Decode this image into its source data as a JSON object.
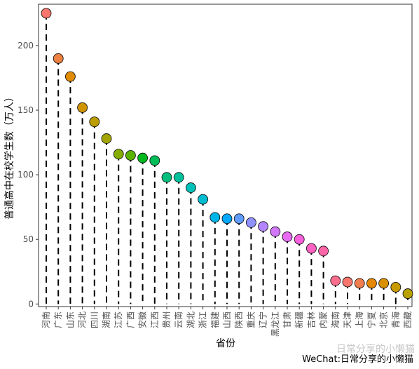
{
  "chart_data": {
    "type": "lollipop",
    "title": "",
    "xlabel": "省份",
    "ylabel": "普通高中在校学生数（万人）",
    "ylim": [
      -2,
      232
    ],
    "yticks": [
      0,
      50,
      100,
      150,
      200
    ],
    "grid": false,
    "legend": "none",
    "categories": [
      "河南",
      "广东",
      "山东",
      "河北",
      "四川",
      "湖南",
      "江苏",
      "广西",
      "安徽",
      "江西",
      "贵州",
      "云南",
      "湖北",
      "浙江",
      "福建",
      "山西",
      "陕西",
      "重庆",
      "辽宁",
      "黑龙江",
      "甘肃",
      "新疆",
      "吉林",
      "内蒙",
      "海南",
      "天津",
      "上海",
      "宁夏",
      "北京",
      "青海",
      "西藏"
    ],
    "values": [
      225,
      190,
      176,
      152,
      141,
      128,
      116,
      115,
      113,
      111,
      98,
      98,
      90,
      81,
      67,
      66,
      66,
      63,
      60,
      56,
      52,
      50,
      43,
      41,
      18,
      17,
      16,
      16,
      16,
      13,
      8
    ],
    "point_colors": [
      "#f8766d",
      "#ed8141",
      "#e08b00",
      "#cf9400",
      "#bb9d00",
      "#a3a500",
      "#85ad00",
      "#5bb300",
      "#00b81f",
      "#00bc59",
      "#00bf7d",
      "#00c19c",
      "#00c0b8",
      "#00bcd1",
      "#00b5e7",
      "#00a9ff",
      "#619cff",
      "#8f91ff",
      "#b385ff",
      "#d277f9",
      "#e86bf3",
      "#f861dd",
      "#ff61c3",
      "#ff66a8",
      "#fa6e8d",
      "#f8766d",
      "#f07e4e",
      "#e58700",
      "#d89000",
      "#c89a00",
      "#b6a200"
    ]
  },
  "watermark": "日常分享的小懒猫",
  "footer": "WeChat:日常分享的小懒猫"
}
